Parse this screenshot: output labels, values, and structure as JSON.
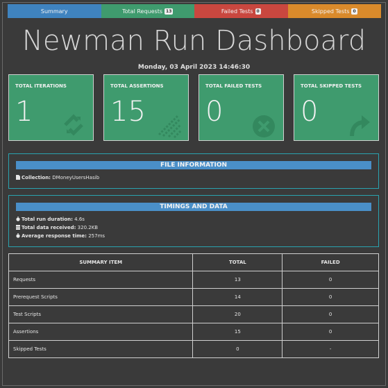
{
  "tabs": [
    {
      "label": "Summary",
      "badge": "",
      "color": "#3f83bf"
    },
    {
      "label": "Total Requests",
      "badge": "13",
      "color": "#3f9b6e"
    },
    {
      "label": "Failed Tests",
      "badge": "0",
      "color": "#c9473f"
    },
    {
      "label": "Skipped Tests",
      "badge": "0",
      "color": "#d98a2b"
    }
  ],
  "header": {
    "title": "Newman Run Dashboard",
    "date": "Monday, 03 April 2023 14:46:30"
  },
  "cards": [
    {
      "label": "TOTAL ITERATIONS",
      "value": "1",
      "icon": "sync-icon"
    },
    {
      "label": "TOTAL ASSERTIONS",
      "value": "15",
      "icon": "list-icon"
    },
    {
      "label": "TOTAL FAILED TESTS",
      "value": "0",
      "icon": "close-circle-icon"
    },
    {
      "label": "TOTAL SKIPPED TESTS",
      "value": "0",
      "icon": "share-icon"
    }
  ],
  "file_info": {
    "heading": "FILE INFORMATION",
    "collection_label": "Collection:",
    "collection_value": "DMoneyUsersHasib"
  },
  "timings": {
    "heading": "TIMINGS AND DATA",
    "duration_label": "Total run duration:",
    "duration_value": "4.6s",
    "data_label": "Total data received:",
    "data_value": "320.2KB",
    "response_label": "Average response time:",
    "response_value": "257ms"
  },
  "summary_table": {
    "headers": [
      "SUMMARY ITEM",
      "TOTAL",
      "FAILED"
    ],
    "rows": [
      {
        "item": "Requests",
        "total": "13",
        "failed": "0"
      },
      {
        "item": "Prerequest Scripts",
        "total": "14",
        "failed": "0"
      },
      {
        "item": "Test Scripts",
        "total": "20",
        "failed": "0"
      },
      {
        "item": "Assertions",
        "total": "15",
        "failed": "0"
      },
      {
        "item": "Skipped Tests",
        "total": "0",
        "failed": "-"
      }
    ]
  }
}
